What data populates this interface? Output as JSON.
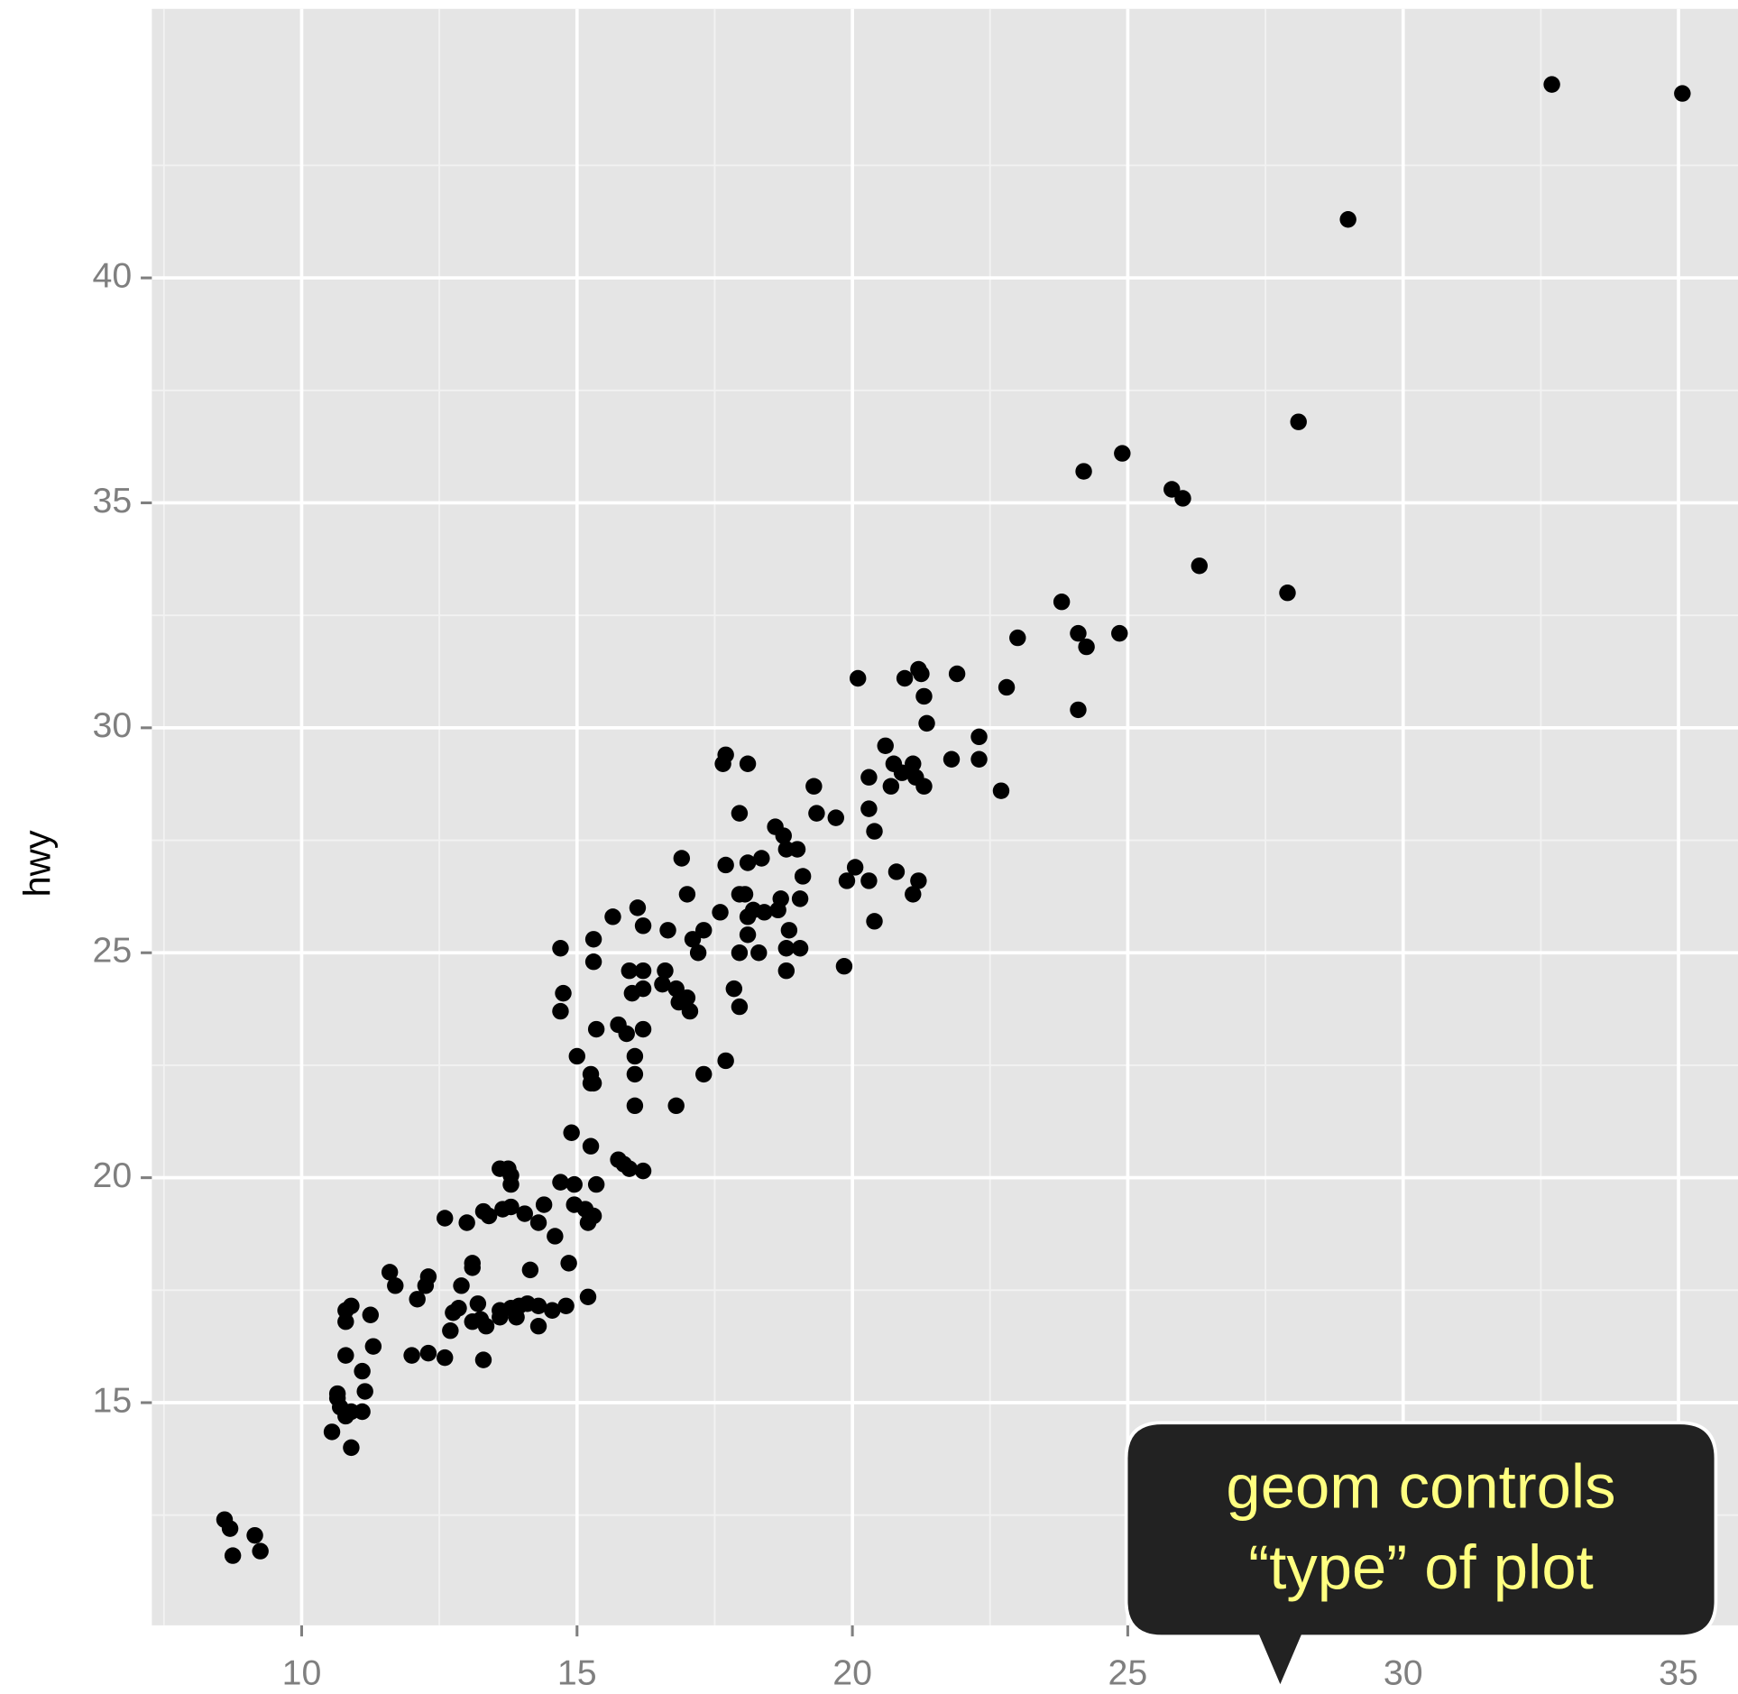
{
  "chart_data": {
    "type": "scatter",
    "y_label": "hwy",
    "annotation": [
      "geom controls",
      "“type” of plot"
    ],
    "color": "#000000",
    "grid": true,
    "xlim": [
      7.28,
      36.08
    ],
    "ylim": [
      10.05,
      45.98
    ],
    "xticks": [
      10,
      15,
      20,
      25,
      30,
      35
    ],
    "yticks": [
      15,
      20,
      25,
      30,
      35,
      40
    ],
    "x": [
      32.7,
      35.07,
      29.0,
      28.1,
      24.9,
      24.2,
      25.8,
      26.0,
      26.3,
      27.9,
      23.8,
      23.0,
      24.1,
      24.85,
      24.25,
      20.1,
      20.95,
      21.2,
      21.25,
      21.9,
      22.8,
      21.3,
      24.1,
      21.35,
      22.3,
      20.6,
      21.8,
      22.3,
      20.75,
      21.1,
      20.9,
      20.3,
      21.15,
      20.7,
      21.3,
      22.7,
      19.3,
      19.35,
      19.7,
      20.3,
      20.4,
      17.7,
      17.65,
      18.1,
      17.95,
      18.6,
      18.75,
      18.8,
      19.0,
      18.35,
      18.1,
      17.7,
      16.9,
      20.05,
      20.8,
      19.9,
      20.3,
      19.1,
      21.2,
      21.1,
      17.0,
      17.95,
      18.05,
      18.7,
      19.05,
      16.1,
      15.65,
      17.6,
      18.4,
      18.65,
      18.1,
      18.2,
      16.2,
      16.65,
      17.3,
      18.85,
      20.4,
      18.1,
      15.3,
      17.1,
      18.8,
      19.05,
      18.3,
      17.95,
      17.2,
      14.7,
      15.3,
      19.85,
      18.8,
      15.95,
      16.2,
      16.6,
      16.55,
      16.8,
      16.2,
      16.0,
      17.85,
      14.75,
      17.0,
      16.85,
      17.05,
      17.95,
      14.7,
      15.75,
      15.35,
      16.2,
      15.9,
      16.05,
      15.0,
      17.7,
      17.3,
      15.25,
      16.05,
      15.3,
      15.25,
      16.8,
      16.05,
      14.9,
      15.25,
      15.75,
      15.85,
      15.95,
      16.2,
      13.6,
      13.75,
      13.8,
      14.7,
      14.95,
      15.35,
      13.8,
      14.95,
      15.15,
      14.4,
      13.8,
      13.3,
      13.65,
      13.4,
      14.05,
      15.3,
      12.6,
      13.0,
      14.3,
      15.2,
      14.6,
      14.85,
      13.1,
      13.1,
      14.15,
      11.6,
      12.3,
      11.7,
      12.25,
      12.9,
      15.2,
      12.1,
      10.9,
      10.8,
      13.2,
      13.95,
      14.1,
      14.3,
      14.8,
      12.85,
      13.6,
      13.8,
      14.55,
      11.25,
      12.75,
      13.6,
      13.9,
      13.25,
      12.7,
      10.8,
      13.1,
      13.35,
      14.3,
      11.3,
      12.0,
      12.3,
      10.8,
      12.6,
      13.3,
      11.1,
      11.15,
      10.65,
      10.65,
      10.7,
      10.9,
      11.1,
      10.8,
      10.55,
      10.9,
      8.6,
      8.7,
      9.15,
      8.75,
      9.25
    ],
    "values": [
      44.3,
      44.1,
      41.3,
      36.8,
      36.1,
      35.7,
      35.3,
      35.1,
      33.6,
      33.0,
      32.8,
      32.0,
      32.1,
      32.1,
      31.8,
      31.1,
      31.1,
      31.3,
      31.2,
      31.2,
      30.9,
      30.7,
      30.4,
      30.1,
      29.8,
      29.6,
      29.3,
      29.3,
      29.2,
      29.2,
      29.0,
      28.9,
      28.9,
      28.7,
      28.7,
      28.6,
      28.7,
      28.1,
      28.0,
      28.2,
      27.7,
      29.4,
      29.2,
      29.2,
      28.1,
      27.8,
      27.6,
      27.3,
      27.3,
      27.1,
      27.0,
      26.95,
      27.1,
      26.9,
      26.8,
      26.6,
      26.6,
      26.7,
      26.6,
      26.3,
      26.3,
      26.3,
      26.3,
      26.2,
      26.2,
      26.0,
      25.8,
      25.9,
      25.9,
      25.95,
      25.8,
      25.95,
      25.6,
      25.5,
      25.5,
      25.5,
      25.7,
      25.4,
      25.3,
      25.3,
      25.1,
      25.1,
      25.0,
      25.0,
      25.0,
      25.1,
      24.8,
      24.7,
      24.6,
      24.6,
      24.6,
      24.6,
      24.3,
      24.2,
      24.2,
      24.1,
      24.2,
      24.1,
      24.0,
      23.9,
      23.7,
      23.8,
      23.7,
      23.4,
      23.3,
      23.3,
      23.2,
      22.7,
      22.7,
      22.6,
      22.3,
      22.3,
      22.3,
      22.1,
      22.1,
      21.6,
      21.6,
      21.0,
      20.7,
      20.4,
      20.3,
      20.2,
      20.15,
      20.2,
      20.2,
      20.05,
      19.9,
      19.85,
      19.85,
      19.85,
      19.4,
      19.3,
      19.4,
      19.35,
      19.25,
      19.3,
      19.15,
      19.2,
      19.15,
      19.1,
      19.0,
      19.0,
      19.0,
      18.7,
      18.1,
      18.1,
      18.0,
      17.95,
      17.9,
      17.8,
      17.6,
      17.6,
      17.6,
      17.35,
      17.3,
      17.15,
      17.05,
      17.2,
      17.15,
      17.2,
      17.15,
      17.15,
      17.1,
      17.05,
      17.1,
      17.05,
      16.95,
      17.0,
      16.9,
      16.9,
      16.85,
      16.6,
      16.8,
      16.8,
      16.7,
      16.7,
      16.25,
      16.05,
      16.1,
      16.05,
      16.0,
      15.95,
      15.7,
      15.25,
      15.2,
      15.1,
      14.9,
      14.8,
      14.8,
      14.7,
      14.35,
      14.0,
      12.4,
      12.2,
      12.05,
      11.6,
      11.7
    ]
  }
}
